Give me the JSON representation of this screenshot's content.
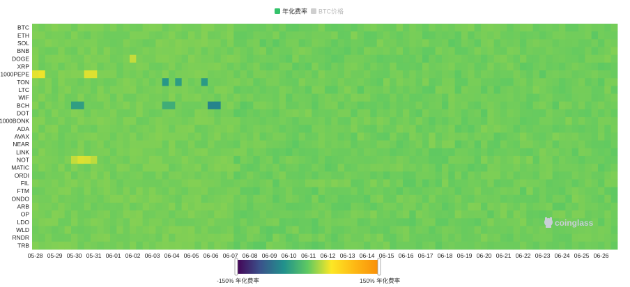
{
  "chart_data": {
    "type": "heatmap",
    "title": "",
    "legend": {
      "position": "top-center",
      "items": [
        {
          "name": "年化费率",
          "color": "#34c26b",
          "active": true
        },
        {
          "name": "BTC价格",
          "color": "#cfcfcf",
          "active": false
        }
      ]
    },
    "y_categories": [
      "BTC",
      "ETH",
      "SOL",
      "BNB",
      "DOGE",
      "XRP",
      "1000PEPE",
      "TON",
      "LTC",
      "WIF",
      "BCH",
      "DOT",
      "1000BONK",
      "ADA",
      "AVAX",
      "NEAR",
      "LINK",
      "NOT",
      "MATIC",
      "ORDI",
      "FIL",
      "FTM",
      "ONDO",
      "ARB",
      "OP",
      "LDO",
      "WLD",
      "RNDR",
      "TRB"
    ],
    "x_tick_labels": [
      "05-28",
      "05-29",
      "05-30",
      "05-31",
      "06-01",
      "06-02",
      "06-03",
      "06-04",
      "06-05",
      "06-06",
      "06-07",
      "06-08",
      "06-09",
      "06-10",
      "06-11",
      "06-12",
      "06-13",
      "06-14",
      "06-15",
      "06-16",
      "06-17",
      "06-18",
      "06-19",
      "06-20",
      "06-21",
      "06-22",
      "06-23",
      "06-24",
      "06-25",
      "06-26"
    ],
    "columns_per_day": 3,
    "visual_map": {
      "min": -150,
      "max": 150,
      "min_label": "-150% 年化费率",
      "max_label": "150% 年化费率",
      "colors": [
        "#440154",
        "#3b528b",
        "#21918c",
        "#5ec962",
        "#fde725",
        "#fdb714",
        "#f98e09"
      ]
    },
    "base_value": 8,
    "notable_values": {
      "BCH": {
        "6-7": -38,
        "20-21": -25,
        "27-28": -60
      },
      "TON": {
        "20": -45,
        "22": -40,
        "26": -42
      },
      "1000PEPE": {
        "0": 42,
        "1": 45,
        "8-9": 40
      },
      "NOT": {
        "6": 32,
        "7": 40,
        "8": 38,
        "9": 30
      },
      "DOGE": {
        "15": 32
      }
    },
    "watermark": "coinglass"
  }
}
